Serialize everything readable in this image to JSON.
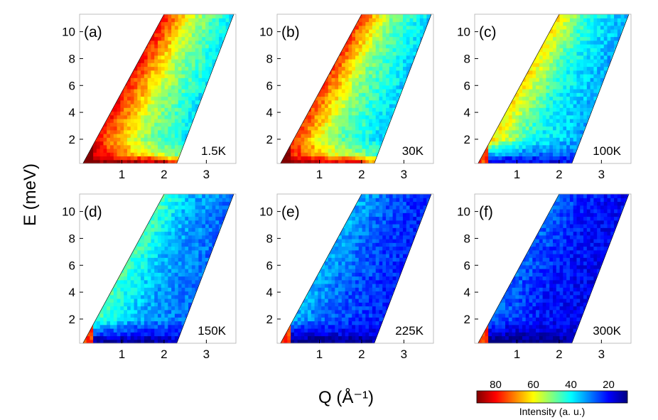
{
  "chart_data": {
    "type": "heatmap",
    "xlabel": "Q (Å⁻¹)",
    "ylabel": "E (meV)",
    "x_ticks": [
      1,
      2,
      3
    ],
    "y_ticks": [
      2,
      4,
      6,
      8,
      10
    ],
    "xlim": [
      0,
      3.7
    ],
    "ylim": [
      0.2,
      11.3
    ],
    "colorbar": {
      "label": "Intensity (a. u.)",
      "ticks": [
        80,
        60,
        40,
        20
      ],
      "range": [
        90,
        10
      ],
      "colormap": "jet",
      "colors": [
        "#800000",
        "#ff0000",
        "#ff8000",
        "#ffff00",
        "#80ff80",
        "#00ffff",
        "#0080ff",
        "#0000ff",
        "#000080"
      ]
    },
    "panels": [
      {
        "label": "(a)",
        "temperature": "1.5K",
        "elastic_intensity": 90,
        "low_q_intensity": 80,
        "mid_intensity": 55,
        "high_q_intensity": 38
      },
      {
        "label": "(b)",
        "temperature": "30K",
        "elastic_intensity": 85,
        "low_q_intensity": 76,
        "mid_intensity": 50,
        "high_q_intensity": 36
      },
      {
        "label": "(c)",
        "temperature": "100K",
        "elastic_intensity": 18,
        "low_q_intensity": 62,
        "mid_intensity": 42,
        "high_q_intensity": 33
      },
      {
        "label": "(d)",
        "temperature": "150K",
        "elastic_intensity": 12,
        "low_q_intensity": 46,
        "mid_intensity": 34,
        "high_q_intensity": 28
      },
      {
        "label": "(e)",
        "temperature": "225K",
        "elastic_intensity": 10,
        "low_q_intensity": 34,
        "mid_intensity": 27,
        "high_q_intensity": 22
      },
      {
        "label": "(f)",
        "temperature": "300K",
        "elastic_intensity": 9,
        "low_q_intensity": 28,
        "mid_intensity": 22,
        "high_q_intensity": 19
      }
    ]
  }
}
